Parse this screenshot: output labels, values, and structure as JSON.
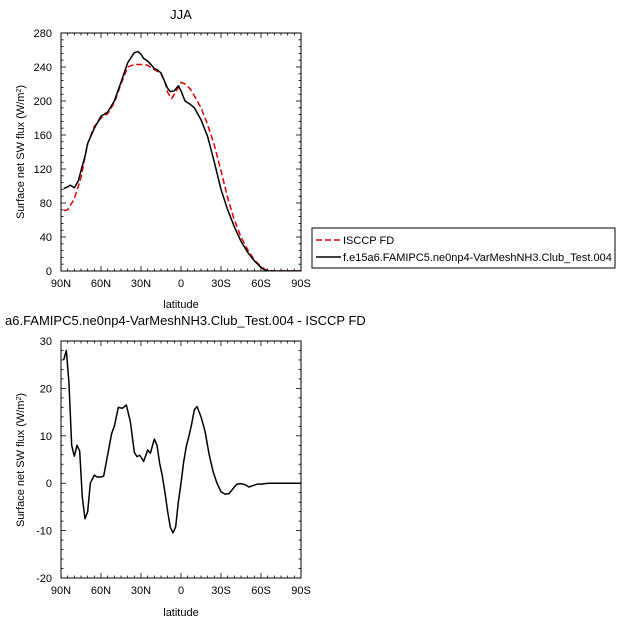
{
  "chart_data": [
    {
      "type": "line",
      "title": "JJA",
      "xlabel": "latitude",
      "ylabel": "Surface net SW flux (W/m²)",
      "ylabel_main": "Surface net SW flux (W/m",
      "ylabel_sup": "2",
      "ylabel_end": ")",
      "xlim": [
        90,
        -90
      ],
      "ylim": [
        0,
        280
      ],
      "x_ticks": [
        90,
        60,
        30,
        0,
        -30,
        -60,
        -90
      ],
      "x_tick_labels": [
        "90N",
        "60N",
        "30N",
        "0",
        "30S",
        "60S",
        "90S"
      ],
      "y_ticks": [
        0,
        40,
        80,
        120,
        160,
        200,
        240,
        280
      ],
      "y_tick_labels": [
        "0",
        "40",
        "80",
        "120",
        "160",
        "200",
        "240",
        "280"
      ],
      "grid": false,
      "legend_position": "right",
      "series": [
        {
          "name": "ISCCP FD",
          "color": "#e00000",
          "dash": "dashed",
          "x": [
            88,
            85,
            80,
            75,
            70,
            65,
            60,
            55,
            50,
            45,
            40,
            35,
            32,
            28,
            25,
            20,
            15,
            12,
            10,
            7,
            5,
            2,
            0,
            -3,
            -7,
            -10,
            -15,
            -20,
            -25,
            -30,
            -35,
            -40,
            -45,
            -50,
            -55,
            -60,
            -63,
            -66,
            -70,
            -75,
            -80,
            -85,
            -90
          ],
          "y": [
            71,
            72,
            85,
            110,
            150,
            170,
            180,
            185,
            198,
            220,
            240,
            243,
            243,
            243,
            242,
            237,
            232,
            222,
            210,
            203,
            208,
            216,
            222,
            220,
            214,
            206,
            192,
            172,
            148,
            118,
            86,
            60,
            40,
            25,
            13,
            5,
            2,
            0.5,
            0,
            0,
            0,
            0,
            0
          ]
        },
        {
          "name": "f.e15a6.FAMIPC5.ne0np4-VarMeshNH3.Club_Test.004",
          "color": "#000000",
          "dash": "solid",
          "x": [
            88,
            85,
            83,
            80,
            77,
            75,
            72,
            70,
            65,
            60,
            55,
            50,
            45,
            40,
            35,
            32,
            30,
            28,
            25,
            22,
            20,
            18,
            15,
            12,
            10,
            8,
            5,
            2,
            0,
            -3,
            -7,
            -10,
            -15,
            -20,
            -25,
            -30,
            -35,
            -40,
            -45,
            -50,
            -55,
            -60,
            -63,
            -66,
            -70,
            -75,
            -80,
            -85,
            -90
          ],
          "y": [
            97,
            99,
            101,
            98,
            106,
            118,
            135,
            150,
            168,
            182,
            187,
            200,
            222,
            245,
            257,
            258,
            255,
            250,
            247,
            242,
            238,
            237,
            233,
            222,
            215,
            211,
            212,
            218,
            212,
            200,
            196,
            192,
            178,
            158,
            128,
            96,
            72,
            52,
            35,
            22,
            12,
            4,
            1,
            0,
            0,
            0,
            0,
            0,
            0
          ]
        }
      ]
    },
    {
      "type": "line",
      "title": "a6.FAMIPC5.ne0np4-VarMeshNH3.Club_Test.004 - ISCCP FD",
      "xlabel": "latitude",
      "ylabel": "Surface net SW flux (W/m²)",
      "ylabel_main": "Surface net SW flux (W/m",
      "ylabel_sup": "2",
      "ylabel_end": ")",
      "xlim": [
        90,
        -90
      ],
      "ylim": [
        -20,
        30
      ],
      "x_ticks": [
        90,
        60,
        30,
        0,
        -30,
        -60,
        -90
      ],
      "x_tick_labels": [
        "90N",
        "60N",
        "30N",
        "0",
        "30S",
        "60S",
        "90S"
      ],
      "y_ticks": [
        -20,
        -10,
        0,
        10,
        20,
        30
      ],
      "y_tick_labels": [
        "-20",
        "-10",
        "0",
        "10",
        "20",
        "30"
      ],
      "grid": false,
      "series": [
        {
          "color": "#000000",
          "dash": "solid",
          "x": [
            88,
            86,
            84,
            82,
            80,
            78,
            76,
            74,
            72,
            70,
            68,
            65,
            63,
            60,
            58,
            55,
            52,
            50,
            47,
            44,
            41,
            38,
            35,
            33,
            31,
            30,
            28,
            25,
            23,
            20,
            18,
            16,
            14,
            12,
            10,
            8,
            6,
            4,
            2,
            0,
            -2,
            -4,
            -6,
            -8,
            -10,
            -12,
            -15,
            -18,
            -21,
            -24,
            -27,
            -30,
            -33,
            -36,
            -38,
            -40,
            -42,
            -45,
            -48,
            -51,
            -54,
            -57,
            -60,
            -63,
            -66,
            -70,
            -75,
            -80,
            -85,
            -90
          ],
          "y": [
            26,
            28,
            21,
            8,
            5.7,
            8,
            6.8,
            -3,
            -7.5,
            -6,
            0,
            1.7,
            1.3,
            1.3,
            1.5,
            6,
            10.5,
            12,
            16,
            15.8,
            16.5,
            13,
            6.5,
            5.6,
            5.9,
            5.5,
            4.6,
            7,
            6.3,
            9.3,
            8,
            4.2,
            1.5,
            -2,
            -6,
            -9.3,
            -10.5,
            -9.2,
            -4,
            0,
            4.5,
            7.8,
            10,
            12.5,
            15.5,
            16.2,
            14,
            11,
            6.2,
            2.5,
            0,
            -1.8,
            -2.3,
            -2.2,
            -1.5,
            -0.8,
            -0.2,
            -0.1,
            -0.3,
            -0.8,
            -0.5,
            -0.2,
            -0.2,
            -0.1,
            0,
            0,
            0,
            0,
            0,
            0
          ]
        }
      ]
    }
  ]
}
